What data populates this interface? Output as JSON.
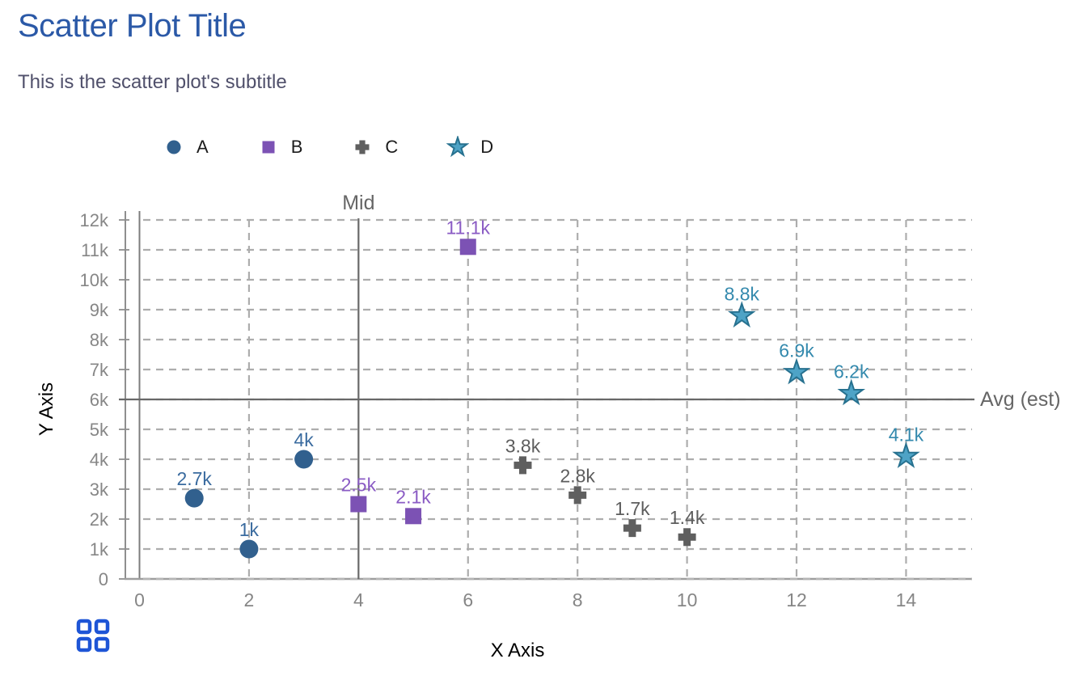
{
  "title": "Scatter Plot Title",
  "subtitle": "This is the scatter plot's subtitle",
  "colors": {
    "title": "#2b59a7",
    "subtitle": "#50506b",
    "grid": "#adadad",
    "axis": "#8f8f8f",
    "tick_label": "#868686",
    "reference_line": "#686868",
    "reference_label": "#666666",
    "legend_label": "#1c1c1c",
    "icon_blue": "#1e55d6"
  },
  "icons": {
    "bottom_left": "grid-icon"
  },
  "chart_data": {
    "type": "scatter",
    "title": "Scatter Plot Title",
    "subtitle": "This is the scatter plot's subtitle",
    "xlabel": "X Axis",
    "ylabel": "Y Axis",
    "xlim": [
      0,
      15.2
    ],
    "ylim": [
      0,
      12000
    ],
    "x_ticks": [
      0,
      2,
      4,
      6,
      8,
      10,
      12,
      14
    ],
    "y_ticks": [
      0,
      1000,
      2000,
      3000,
      4000,
      5000,
      6000,
      7000,
      8000,
      9000,
      10000,
      11000,
      12000
    ],
    "y_tick_labels": [
      "0",
      "1k",
      "2k",
      "3k",
      "4k",
      "5k",
      "6k",
      "7k",
      "8k",
      "9k",
      "10k",
      "11k",
      "12k"
    ],
    "grid": true,
    "legend_position": "top",
    "series": [
      {
        "name": "A",
        "marker": "circle",
        "color": "#31608e",
        "label_color": "#3a6b9f",
        "points": [
          {
            "x": 1,
            "y": 2700,
            "label": "2.7k"
          },
          {
            "x": 2,
            "y": 1000,
            "label": "1k"
          },
          {
            "x": 3,
            "y": 4000,
            "label": "4k"
          }
        ]
      },
      {
        "name": "B",
        "marker": "square",
        "color": "#7c52b4",
        "label_color": "#8a5bc4",
        "points": [
          {
            "x": 4,
            "y": 2500,
            "label": "2.5k"
          },
          {
            "x": 5,
            "y": 2100,
            "label": "2.1k"
          },
          {
            "x": 6,
            "y": 11100,
            "label": "11.1k"
          }
        ]
      },
      {
        "name": "C",
        "marker": "plus",
        "color": "#5f5f5f",
        "label_color": "#5d5d5d",
        "points": [
          {
            "x": 7,
            "y": 3800,
            "label": "3.8k"
          },
          {
            "x": 8,
            "y": 2800,
            "label": "2.8k"
          },
          {
            "x": 9,
            "y": 1700,
            "label": "1.7k"
          },
          {
            "x": 10,
            "y": 1400,
            "label": "1.4k"
          }
        ]
      },
      {
        "name": "D",
        "marker": "star",
        "color": "#4ea3c6",
        "stroke": "#27718f",
        "label_color": "#3389ad",
        "points": [
          {
            "x": 11,
            "y": 8800,
            "label": "8.8k"
          },
          {
            "x": 12,
            "y": 6900,
            "label": "6.9k"
          },
          {
            "x": 13,
            "y": 6200,
            "label": "6.2k"
          },
          {
            "x": 14,
            "y": 4100,
            "label": "4.1k"
          }
        ]
      }
    ],
    "reference_lines": [
      {
        "orientation": "vertical",
        "x": 4,
        "label": "Mid"
      },
      {
        "orientation": "horizontal",
        "y": 6000,
        "label": "Avg (est)"
      }
    ]
  }
}
